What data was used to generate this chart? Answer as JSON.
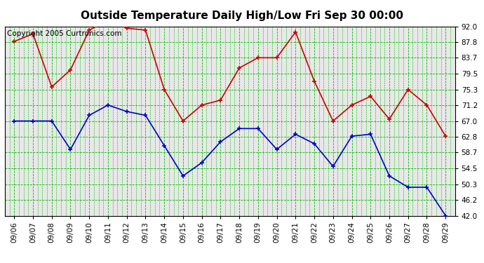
{
  "title": "Outside Temperature Daily High/Low Fri Sep 30 00:00",
  "copyright": "Copyright 2005 Curtronics.com",
  "dates": [
    "09/06",
    "09/07",
    "09/08",
    "09/09",
    "09/10",
    "09/11",
    "09/12",
    "09/13",
    "09/14",
    "09/15",
    "09/16",
    "09/17",
    "09/18",
    "09/19",
    "09/20",
    "09/21",
    "09/22",
    "09/23",
    "09/24",
    "09/25",
    "09/26",
    "09/27",
    "09/28",
    "09/29"
  ],
  "high": [
    88.0,
    90.0,
    76.0,
    80.5,
    91.0,
    93.5,
    91.5,
    91.0,
    75.3,
    67.0,
    71.2,
    72.5,
    81.0,
    83.7,
    83.7,
    90.5,
    77.5,
    67.0,
    71.2,
    73.5,
    67.5,
    75.3,
    71.2,
    63.0
  ],
  "low": [
    67.0,
    67.0,
    67.0,
    59.5,
    68.5,
    71.2,
    69.5,
    68.5,
    60.5,
    52.5,
    56.0,
    61.5,
    65.0,
    65.0,
    59.5,
    63.5,
    61.0,
    55.0,
    63.0,
    63.5,
    52.5,
    49.5,
    49.5,
    42.0
  ],
  "ylim": [
    42.0,
    92.0
  ],
  "yticks": [
    42.0,
    46.2,
    50.3,
    54.5,
    58.7,
    62.8,
    67.0,
    71.2,
    75.3,
    79.5,
    83.7,
    87.8,
    92.0
  ],
  "high_color": "#cc0000",
  "low_color": "#0000cc",
  "grid_color": "#00bb00",
  "bg_color": "#ffffff",
  "plot_bg_color": "#e8e8e8",
  "title_fontsize": 11,
  "tick_fontsize": 7.5,
  "copyright_fontsize": 7.5
}
